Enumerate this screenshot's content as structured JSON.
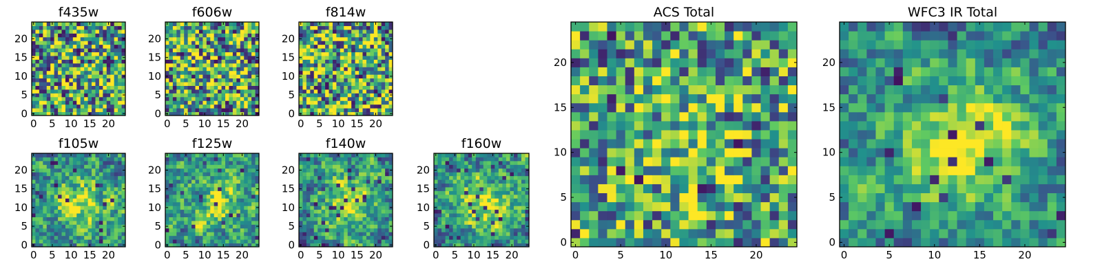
{
  "figure": {
    "colormap": "viridis",
    "colormap_stops": [
      "#440154",
      "#3b528b",
      "#21918c",
      "#5ec962",
      "#fde725"
    ],
    "background": "#ffffff"
  },
  "chart_data": [
    {
      "type": "heatmap",
      "title": "f435w",
      "xlim": [
        0,
        24
      ],
      "ylim": [
        0,
        24
      ],
      "x_ticks": [
        "0",
        "5",
        "10",
        "15",
        "20"
      ],
      "y_ticks": [
        "0",
        "5",
        "10",
        "15",
        "20"
      ],
      "grid_size": [
        25,
        25
      ],
      "noise_level": 0.55,
      "smoothness": 0,
      "blob_strength": 0.05,
      "seed": 11
    },
    {
      "type": "heatmap",
      "title": "f606w",
      "xlim": [
        0,
        24
      ],
      "ylim": [
        0,
        24
      ],
      "x_ticks": [
        "0",
        "5",
        "10",
        "15",
        "20"
      ],
      "y_ticks": [
        "0",
        "5",
        "10",
        "15",
        "20"
      ],
      "grid_size": [
        25,
        25
      ],
      "noise_level": 0.55,
      "smoothness": 0,
      "blob_strength": 0.08,
      "seed": 22
    },
    {
      "type": "heatmap",
      "title": "f814w",
      "xlim": [
        0,
        24
      ],
      "ylim": [
        0,
        24
      ],
      "x_ticks": [
        "0",
        "5",
        "10",
        "15",
        "20"
      ],
      "y_ticks": [
        "0",
        "5",
        "10",
        "15",
        "20"
      ],
      "grid_size": [
        25,
        25
      ],
      "noise_level": 0.55,
      "smoothness": 0,
      "blob_strength": 0.08,
      "seed": 33
    },
    {
      "type": "heatmap",
      "title": "f105w",
      "xlim": [
        0,
        24
      ],
      "ylim": [
        0,
        24
      ],
      "x_ticks": [
        "0",
        "5",
        "10",
        "15",
        "20"
      ],
      "y_ticks": [
        "0",
        "5",
        "10",
        "15",
        "20"
      ],
      "grid_size": [
        25,
        25
      ],
      "noise_level": 0.5,
      "smoothness": 1,
      "blob_strength": 0.35,
      "seed": 44
    },
    {
      "type": "heatmap",
      "title": "f125w",
      "xlim": [
        0,
        24
      ],
      "ylim": [
        0,
        24
      ],
      "x_ticks": [
        "0",
        "5",
        "10",
        "15",
        "20"
      ],
      "y_ticks": [
        "0",
        "5",
        "10",
        "15",
        "20"
      ],
      "grid_size": [
        25,
        25
      ],
      "noise_level": 0.5,
      "smoothness": 1,
      "blob_strength": 0.3,
      "seed": 55
    },
    {
      "type": "heatmap",
      "title": "f140w",
      "xlim": [
        0,
        24
      ],
      "ylim": [
        0,
        24
      ],
      "x_ticks": [
        "0",
        "5",
        "10",
        "15",
        "20"
      ],
      "y_ticks": [
        "0",
        "5",
        "10",
        "15",
        "20"
      ],
      "grid_size": [
        25,
        25
      ],
      "noise_level": 0.5,
      "smoothness": 1,
      "blob_strength": 0.35,
      "seed": 66
    },
    {
      "type": "heatmap",
      "title": "f160w",
      "xlim": [
        0,
        24
      ],
      "ylim": [
        0,
        24
      ],
      "x_ticks": [
        "0",
        "5",
        "10",
        "15",
        "20"
      ],
      "y_ticks": [
        "0",
        "5",
        "10",
        "15",
        "20"
      ],
      "grid_size": [
        25,
        25
      ],
      "noise_level": 0.5,
      "smoothness": 1,
      "blob_strength": 0.4,
      "seed": 77
    },
    {
      "type": "heatmap",
      "title": "ACS Total",
      "xlim": [
        0,
        24
      ],
      "ylim": [
        0,
        24
      ],
      "x_ticks": [
        "0",
        "5",
        "10",
        "15",
        "20"
      ],
      "y_ticks": [
        "0",
        "5",
        "10",
        "15",
        "20"
      ],
      "grid_size": [
        25,
        25
      ],
      "noise_level": 0.45,
      "smoothness": 0,
      "blob_strength": 0.2,
      "seed": 88
    },
    {
      "type": "heatmap",
      "title": "WFC3 IR Total",
      "xlim": [
        0,
        24
      ],
      "ylim": [
        0,
        24
      ],
      "x_ticks": [
        "0",
        "5",
        "10",
        "15",
        "20"
      ],
      "y_ticks": [
        "0",
        "5",
        "10",
        "15",
        "20"
      ],
      "grid_size": [
        25,
        25
      ],
      "noise_level": 0.45,
      "smoothness": 1,
      "blob_strength": 0.5,
      "seed": 99
    }
  ]
}
